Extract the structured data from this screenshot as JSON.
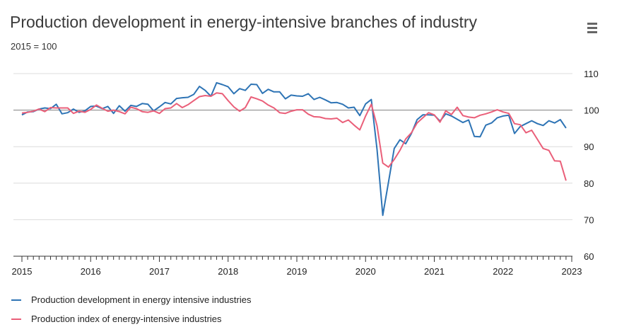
{
  "title": "Production development in energy-intensive branches of industry",
  "subtitle": "2015 = 100",
  "menu_icon": "hamburger-menu-icon",
  "colors": {
    "series1": "#2e74b5",
    "series2": "#ea5f79",
    "grid": "#dcdcdc",
    "baseline": "#a0a0a0"
  },
  "chart_data": {
    "type": "line",
    "title": "Production development in energy-intensive branches of industry",
    "subtitle": "2015 = 100",
    "x_axis": {
      "start": "2015-01",
      "end": "2023-01",
      "tick_labels": [
        "2015",
        "2016",
        "2017",
        "2018",
        "2019",
        "2020",
        "2021",
        "2022",
        "2023"
      ]
    },
    "y_axis": {
      "range": [
        60,
        112
      ],
      "tick_labels": [
        "110",
        "100",
        "90",
        "80",
        "70",
        "60"
      ],
      "position": "right"
    },
    "reference_line": 100,
    "grid": true,
    "legend_position": "bottom-left",
    "series": [
      {
        "name": "Production development in energy intensive industries",
        "start": "2015-01",
        "values": [
          98.7,
          99.5,
          99.6,
          100.3,
          100.6,
          100.4,
          101.6,
          99.0,
          99.3,
          100.3,
          99.4,
          99.8,
          101.0,
          101.1,
          100.4,
          101.0,
          99.1,
          101.2,
          99.7,
          101.3,
          101.0,
          101.8,
          101.6,
          99.8,
          100.9,
          102.1,
          101.7,
          103.2,
          103.4,
          103.5,
          104.3,
          106.5,
          105.4,
          103.8,
          107.5,
          107.0,
          106.4,
          104.5,
          105.9,
          105.4,
          107.1,
          107.0,
          104.6,
          105.7,
          105.0,
          105.0,
          103.1,
          104.1,
          103.9,
          103.8,
          104.5,
          102.9,
          103.5,
          102.8,
          102.0,
          102.1,
          101.6,
          100.6,
          100.8,
          98.5,
          101.7,
          102.9,
          89.2,
          71.2,
          80.3,
          89.5,
          91.9,
          90.8,
          93.6,
          97.4,
          98.7,
          98.7,
          98.6,
          97.0,
          99.0,
          98.4,
          97.5,
          96.6,
          97.3,
          92.8,
          92.7,
          95.9,
          96.5,
          97.9,
          98.4,
          98.6,
          93.6,
          95.5,
          96.3,
          97.1,
          96.3,
          95.8,
          97.1,
          96.5,
          97.4,
          95.1
        ]
      },
      {
        "name": "Production index of energy-intensive industries",
        "start": "2015-01",
        "values": [
          99.2,
          99.4,
          99.7,
          100.3,
          99.6,
          100.7,
          100.6,
          100.6,
          100.6,
          99.1,
          99.7,
          99.4,
          100.2,
          101.4,
          100.5,
          99.7,
          100.0,
          99.6,
          99.0,
          100.8,
          100.4,
          99.6,
          99.4,
          99.8,
          99.1,
          100.4,
          100.6,
          101.8,
          100.7,
          101.5,
          102.6,
          103.7,
          104.0,
          103.8,
          104.7,
          104.5,
          102.6,
          100.9,
          99.7,
          100.7,
          103.6,
          103.1,
          102.5,
          101.4,
          100.6,
          99.3,
          99.1,
          99.7,
          100.1,
          100.1,
          98.9,
          98.2,
          98.1,
          97.7,
          97.6,
          97.8,
          96.6,
          97.3,
          95.9,
          94.6,
          98.4,
          101.6,
          95.7,
          85.5,
          84.4,
          86.5,
          89.0,
          92.1,
          93.8,
          96.5,
          97.9,
          99.3,
          98.7,
          96.7,
          99.8,
          98.8,
          100.8,
          98.5,
          98.1,
          97.9,
          98.6,
          99.0,
          99.5,
          100.1,
          99.5,
          99.1,
          96.3,
          96.0,
          93.8,
          94.5,
          92.0,
          89.5,
          89.0,
          86.1,
          86.0,
          80.7
        ]
      }
    ]
  },
  "legend": [
    {
      "label": "Production development in energy intensive industries"
    },
    {
      "label": "Production index of energy-intensive industries"
    }
  ]
}
